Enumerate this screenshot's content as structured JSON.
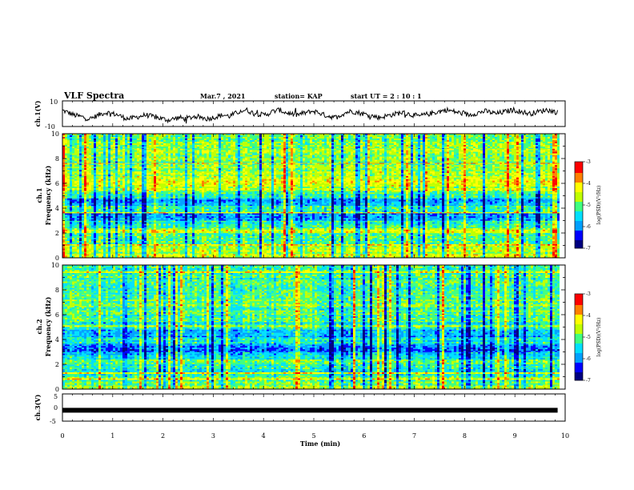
{
  "header": {
    "title": "VLF Spectra",
    "date": "Mar.7 , 2021",
    "station": "station= KAP",
    "start": "start  UT =   2 : 10 : 1"
  },
  "colors": {
    "colormap": [
      "#000080",
      "#0000ff",
      "#00a0ff",
      "#00e0ff",
      "#40ff80",
      "#c0ff00",
      "#ffff00",
      "#ff8000",
      "#ff0000",
      "#ffffff"
    ],
    "trace": "#000000"
  },
  "chart_data": [
    {
      "type": "line",
      "panel": "ch1-waveform",
      "ylabel": "ch.1(V)",
      "ylim": [
        -10,
        10
      ],
      "y_ticks": [
        "10",
        "-10"
      ],
      "x_range": [
        0,
        9.85
      ],
      "series": [
        {
          "values": [
            2.5,
            1,
            -1,
            -2,
            -3,
            -4,
            -2,
            0,
            1,
            0,
            -1,
            -3,
            -4,
            -3,
            -2,
            -1,
            -2,
            -3,
            -4,
            -5,
            -4,
            -3,
            -4,
            -3,
            -2,
            -3,
            -4,
            -3,
            -2,
            -1,
            -2,
            0,
            2,
            3,
            1,
            0,
            -1,
            0,
            2,
            3,
            1,
            0,
            -1,
            0,
            1,
            2,
            1,
            -1,
            -2,
            -3,
            -1,
            1,
            2,
            1,
            0,
            -1,
            -2,
            -3,
            -2,
            -1,
            0,
            1,
            0,
            -1,
            -2,
            -1,
            0,
            1,
            2,
            3,
            2,
            1,
            0,
            -1,
            0,
            1,
            2,
            1,
            0,
            1,
            2,
            3,
            2,
            1,
            0,
            1,
            2,
            3,
            2,
            1
          ]
        }
      ]
    },
    {
      "type": "heatmap",
      "panel": "ch1-spectrogram",
      "ylabel": "ch.1\nFrequency (kHz)",
      "ylim": [
        0,
        10
      ],
      "y_ticks": [
        "10",
        "8",
        "6",
        "4",
        "2",
        "0"
      ],
      "x_range": [
        0,
        9.85
      ],
      "colorbar": {
        "label": "log(PSD)(V²/Hz)",
        "range": [
          -7,
          -3
        ],
        "ticks": [
          "-3",
          "-4",
          "-5",
          "-6",
          "-7"
        ]
      },
      "bands_khz": [
        {
          "band": [
            0.0,
            0.3
          ],
          "log_psd": -4.3
        },
        {
          "band": [
            0.3,
            1.0
          ],
          "log_psd": -4.6
        },
        {
          "band": [
            1.0,
            2.0
          ],
          "log_psd": -5.0
        },
        {
          "band": [
            2.0,
            2.4
          ],
          "log_psd": -4.5
        },
        {
          "band": [
            2.4,
            3.0
          ],
          "log_psd": -5.2
        },
        {
          "band": [
            3.0,
            3.6
          ],
          "log_psd": -5.9
        },
        {
          "band": [
            3.6,
            4.2
          ],
          "log_psd": -5.1
        },
        {
          "band": [
            4.2,
            4.8
          ],
          "log_psd": -5.8
        },
        {
          "band": [
            4.8,
            5.4
          ],
          "log_psd": -5.1
        },
        {
          "band": [
            5.4,
            6.0
          ],
          "log_psd": -4.5
        },
        {
          "band": [
            6.0,
            6.6
          ],
          "log_psd": -4.3
        },
        {
          "band": [
            6.6,
            7.6
          ],
          "log_psd": -4.6
        },
        {
          "band": [
            7.6,
            8.8
          ],
          "log_psd": -4.7
        },
        {
          "band": [
            8.8,
            10.0
          ],
          "log_psd": -4.8
        }
      ]
    },
    {
      "type": "heatmap",
      "panel": "ch2-spectrogram",
      "ylabel": "ch.2\nFrequency (kHz)",
      "ylim": [
        0,
        10
      ],
      "y_ticks": [
        "10",
        "8",
        "6",
        "4",
        "2",
        "0"
      ],
      "x_range": [
        0,
        9.85
      ],
      "colorbar": {
        "label": "log(PSD)(V²/Hz)",
        "range": [
          -7,
          -3
        ],
        "ticks": [
          "-3",
          "-4",
          "-5",
          "-6",
          "-7"
        ]
      },
      "bands_khz": [
        {
          "band": [
            0.0,
            0.3
          ],
          "log_psd": -4.6
        },
        {
          "band": [
            0.3,
            1.0
          ],
          "log_psd": -5.0
        },
        {
          "band": [
            1.0,
            2.0
          ],
          "log_psd": -5.3
        },
        {
          "band": [
            2.0,
            2.4
          ],
          "log_psd": -4.9
        },
        {
          "band": [
            2.4,
            3.0
          ],
          "log_psd": -5.6
        },
        {
          "band": [
            3.0,
            3.6
          ],
          "log_psd": -6.0
        },
        {
          "band": [
            3.6,
            4.2
          ],
          "log_psd": -5.4
        },
        {
          "band": [
            4.2,
            4.8
          ],
          "log_psd": -5.8
        },
        {
          "band": [
            4.8,
            5.4
          ],
          "log_psd": -5.3
        },
        {
          "band": [
            5.4,
            6.0
          ],
          "log_psd": -5.1
        },
        {
          "band": [
            6.0,
            6.6
          ],
          "log_psd": -5.0
        },
        {
          "band": [
            6.6,
            7.6
          ],
          "log_psd": -4.9
        },
        {
          "band": [
            7.6,
            8.8
          ],
          "log_psd": -5.0
        },
        {
          "band": [
            8.8,
            10.0
          ],
          "log_psd": -5.1
        }
      ]
    },
    {
      "type": "line",
      "panel": "ch3-waveform",
      "ylabel": "ch.3(V)",
      "ylim": [
        -5,
        5
      ],
      "y_ticks": [
        "5",
        "0",
        "-5"
      ],
      "x_range": [
        0,
        9.85
      ],
      "series": [
        {
          "values": [
            -1,
            -1
          ]
        }
      ]
    }
  ],
  "xaxis": {
    "label": "Time  (min)",
    "ticks": [
      "0",
      "1",
      "2",
      "3",
      "4",
      "5",
      "6",
      "7",
      "8",
      "9",
      "10"
    ],
    "range": [
      0,
      10
    ]
  }
}
